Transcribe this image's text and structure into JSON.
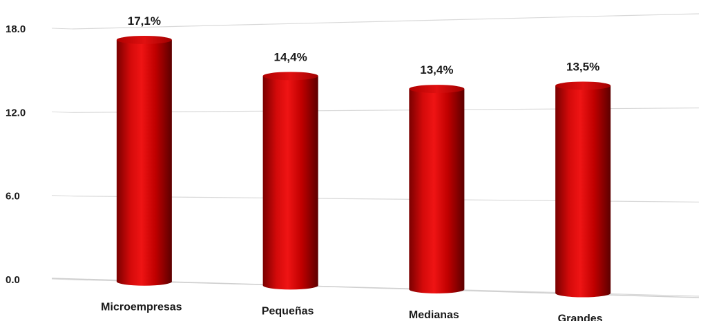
{
  "chart_data": {
    "type": "bar",
    "style": "3d-cylinder",
    "categories": [
      "Microempresas",
      "Pequeñas",
      "Medianas",
      "Grandes"
    ],
    "values": [
      17.1,
      14.4,
      13.4,
      13.5
    ],
    "data_labels": [
      "17,1%",
      "14,4%",
      "13,4%",
      "13,5%"
    ],
    "yticks": [
      "0.0",
      "6.0",
      "12.0",
      "18.0"
    ],
    "ylim": [
      0,
      18
    ],
    "grid": true,
    "legend": "none",
    "colors": {
      "bar_light": "#e80f0f",
      "bar_mid": "#c00000",
      "bar_dark": "#5c0000",
      "grid": "#d9d9d9",
      "text": "#1a1a1a"
    }
  }
}
